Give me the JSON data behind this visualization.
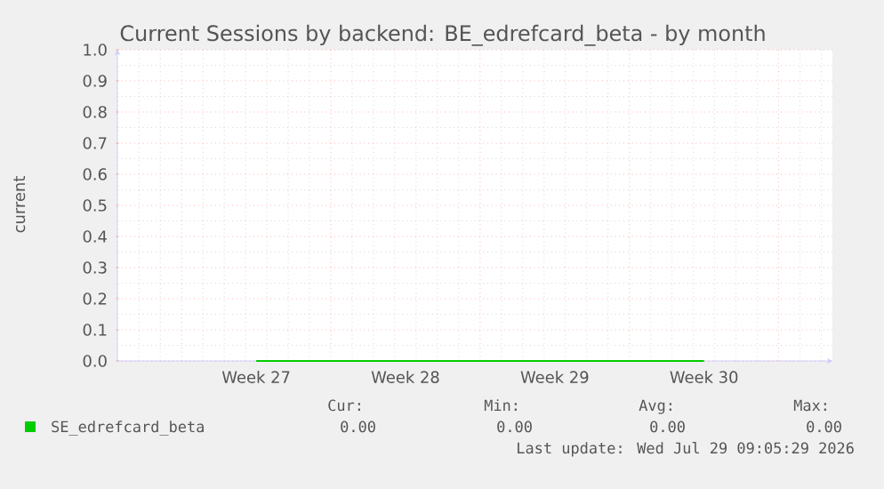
{
  "chart_data": {
    "type": "line",
    "title": "Current Sessions by backend: BE_edrefcard_beta - by month",
    "ylabel": "current",
    "categories": [
      "Week 27",
      "Week 28",
      "Week 29",
      "Week 30"
    ],
    "series": [
      {
        "name": "SE_edrefcard_beta",
        "color": "#00cc00",
        "values": [
          0,
          0,
          0,
          0
        ]
      }
    ],
    "ylim": [
      0,
      1
    ],
    "yticks": [
      {
        "value": 0,
        "label": "0.0"
      },
      {
        "value": 0.1,
        "label": "0.1"
      },
      {
        "value": 0.2,
        "label": "0.2"
      },
      {
        "value": 0.3,
        "label": "0.3"
      },
      {
        "value": 0.4,
        "label": "0.4"
      },
      {
        "value": 0.5,
        "label": "0.5"
      },
      {
        "value": 0.6,
        "label": "0.6"
      },
      {
        "value": 0.7,
        "label": "0.7"
      },
      {
        "value": 0.8,
        "label": "0.8"
      },
      {
        "value": 0.9,
        "label": "0.9"
      },
      {
        "value": 1,
        "label": "1.0"
      }
    ],
    "grid": true,
    "legend": "bottom left",
    "annotations": [
      "Cur:",
      "Min:",
      "Avg:",
      "Max:",
      "0.00",
      "0.00",
      "0.00",
      "0.00",
      "Last update: Wed Jul 29 09:05:29 2026"
    ]
  }
}
